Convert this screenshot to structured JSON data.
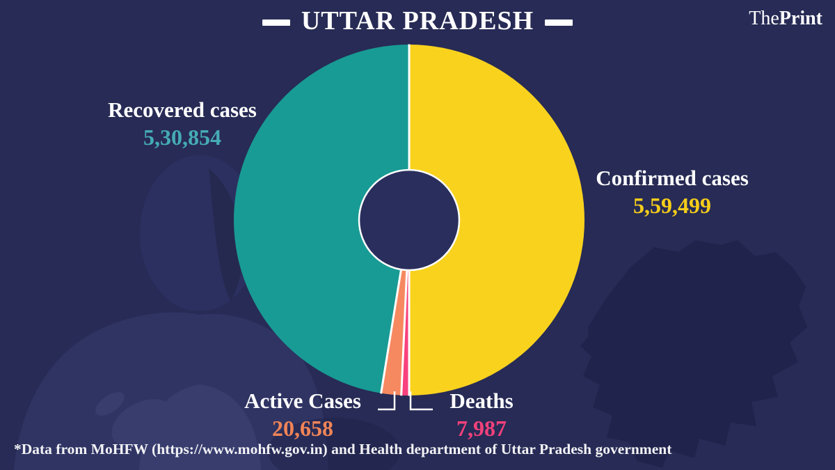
{
  "title": {
    "text": "UTTAR PRADESH"
  },
  "brand": {
    "prefix": "The",
    "suffix": "Print"
  },
  "footer": {
    "text": "*Data from MoHFW (https://www.mohfw.gov.in) and Health department of Uttar Pradesh government"
  },
  "chart_data": {
    "type": "pie",
    "variant": "donut",
    "title": "UTTAR PRADESH",
    "direction": "clockwise",
    "start_angle_deg": 0,
    "inner_radius_ratio": 0.285,
    "legend_position": "around-chart",
    "slices": [
      {
        "id": "confirmed",
        "label": "Confirmed cases",
        "value": 559499,
        "value_display": "5,59,499",
        "color": "#F9D21E",
        "number_color": "#F6CD1A"
      },
      {
        "id": "deaths",
        "label": "Deaths",
        "value": 7987,
        "value_display": "7,987",
        "color": "#F8417D",
        "number_color": "#F2417B"
      },
      {
        "id": "active",
        "label": "Active Cases",
        "value": 20658,
        "value_display": "20,658",
        "color": "#F68960",
        "number_color": "#F08457"
      },
      {
        "id": "recovered",
        "label": "Recovered cases",
        "value": 530854,
        "value_display": "5,30,854",
        "color": "#189B94",
        "number_color": "#45ABB4"
      }
    ],
    "note": "Confirmed cases slice equals half the circle; the other half is split among recovered, active and deaths"
  },
  "colors": {
    "background": "#272B55",
    "donut_hole": "#2A2E5C",
    "slice_divider": "#FFFFFF",
    "text": "#FFFFFF",
    "map_silhouette": "#20244C"
  }
}
